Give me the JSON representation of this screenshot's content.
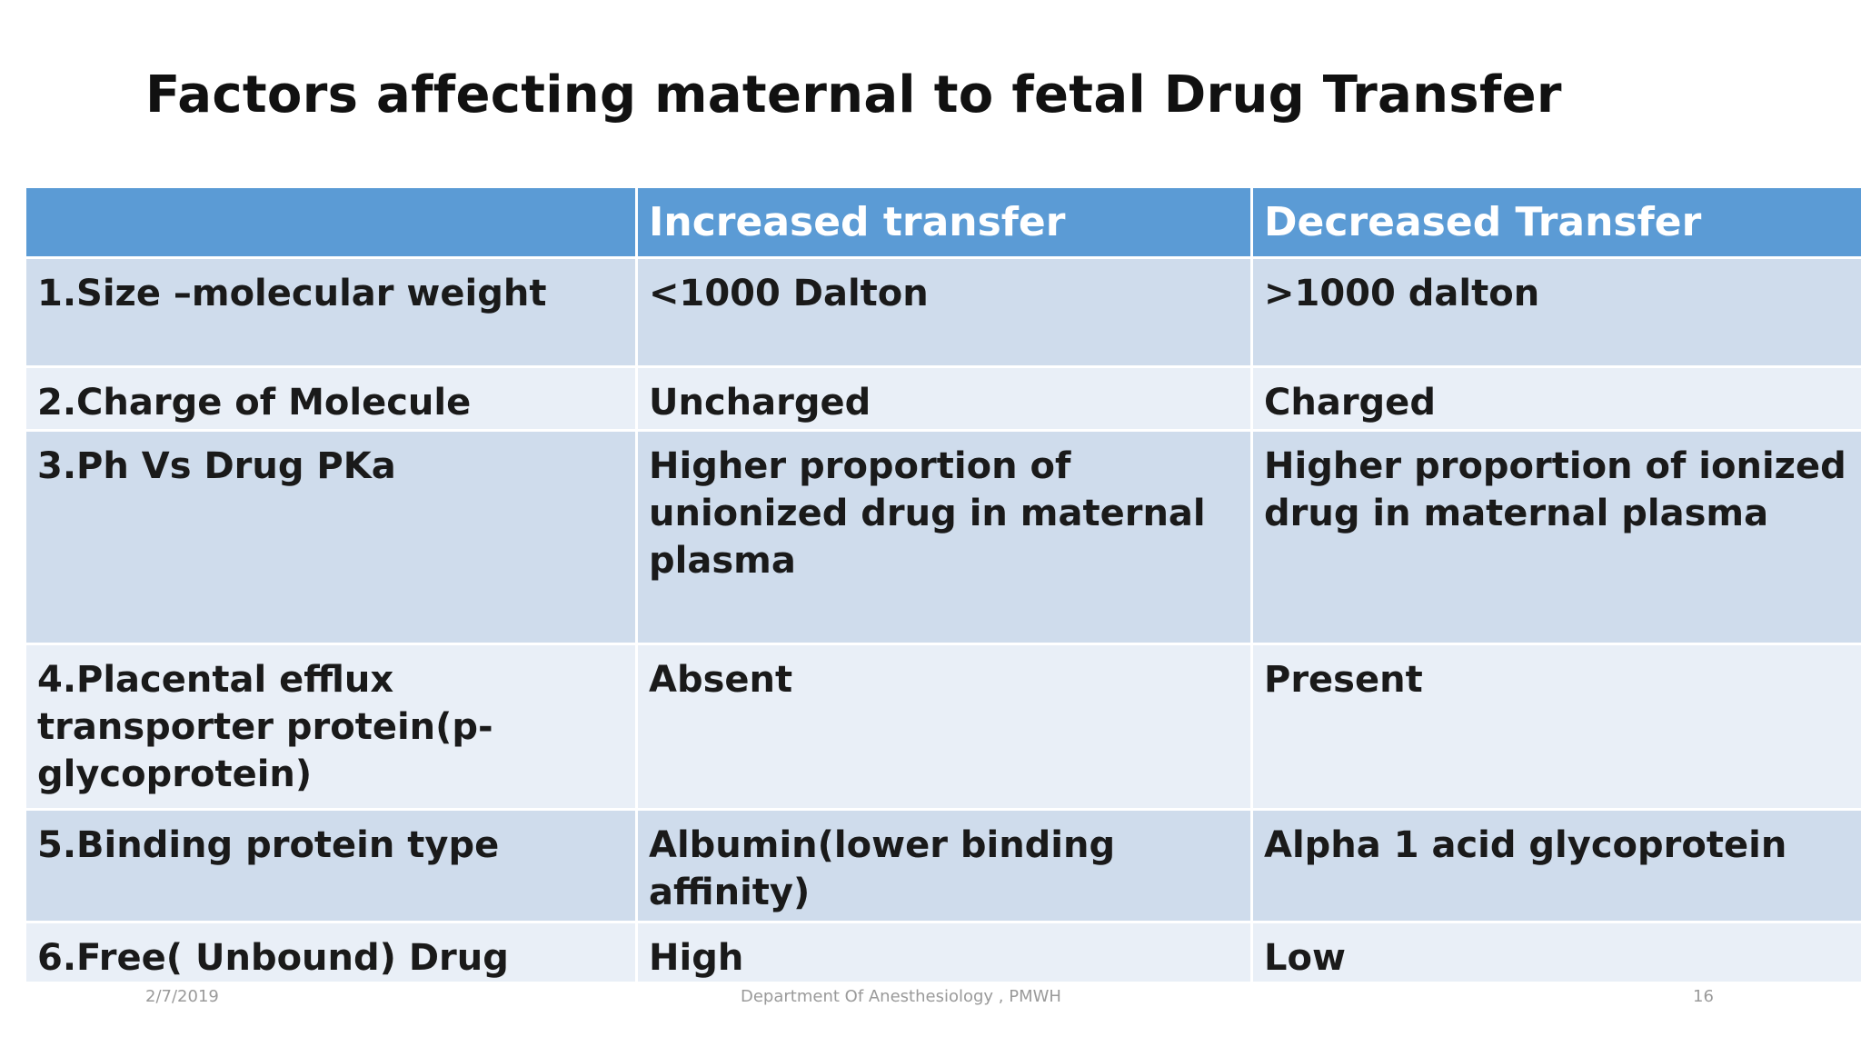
{
  "slide": {
    "title": "Factors affecting maternal to fetal Drug Transfer"
  },
  "table": {
    "headers": [
      "",
      "Increased transfer",
      "Decreased  Transfer"
    ],
    "rows": [
      {
        "factor": "1.Size –molecular weight",
        "increased": "<1000 Dalton",
        "decreased": ">1000 dalton"
      },
      {
        "factor": "2.Charge of Molecule",
        "increased": "Uncharged",
        "decreased": "Charged"
      },
      {
        "factor": "3.Ph Vs Drug  PKa",
        "increased": "Higher proportion of unionized drug in maternal plasma",
        "decreased": "Higher proportion of ionized drug in maternal plasma"
      },
      {
        "factor": "4.Placental efflux transporter  protein(p-glycoprotein)",
        "increased": "Absent",
        "decreased": "Present"
      },
      {
        "factor": "5.Binding protein type",
        "increased": "Albumin(lower binding affinity)",
        "decreased": "Alpha 1 acid glycoprotein"
      },
      {
        "factor": "6.Free( Unbound) Drug",
        "increased": "High",
        "decreased": "Low"
      }
    ]
  },
  "footer": {
    "date": "2/7/2019",
    "department": "Department Of Anesthesiology , PMWH",
    "page_number": "16"
  },
  "colors": {
    "header_bg": "#5b9bd5",
    "row_dark": "#cfdcec",
    "row_light": "#e9eff7"
  }
}
